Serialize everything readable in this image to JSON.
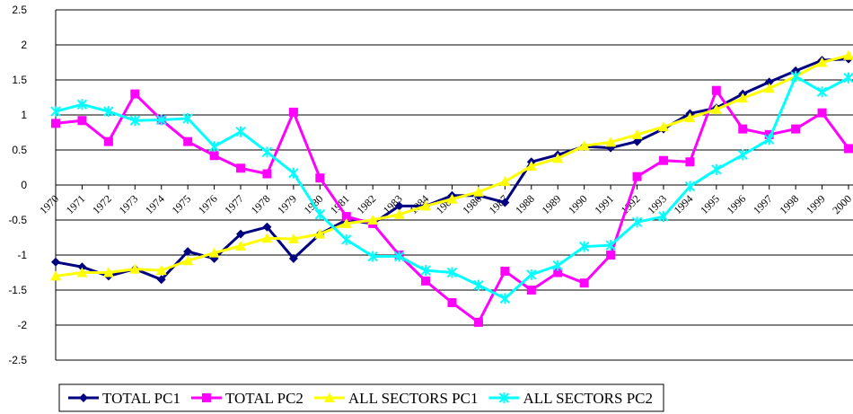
{
  "chart_data": {
    "type": "line",
    "categories": [
      "1970",
      "1971",
      "1972",
      "1973",
      "1974",
      "1975",
      "1976",
      "1977",
      "1978",
      "1979",
      "1980",
      "1981",
      "1982",
      "1983",
      "1984",
      "1985",
      "1986",
      "1987",
      "1988",
      "1989",
      "1990",
      "1991",
      "1992",
      "1993",
      "1994",
      "1995",
      "1996",
      "1997",
      "1998",
      "1999",
      "2000"
    ],
    "series": [
      {
        "name": "TOTAL PC1",
        "color": "#000080",
        "marker": "diamond",
        "values": [
          -1.1,
          -1.17,
          -1.3,
          -1.2,
          -1.35,
          -0.95,
          -1.05,
          -0.7,
          -0.6,
          -1.05,
          -0.7,
          -0.5,
          -0.55,
          -0.3,
          -0.3,
          -0.15,
          -0.15,
          -0.25,
          0.33,
          0.43,
          0.55,
          0.53,
          0.62,
          0.8,
          1.02,
          1.1,
          1.3,
          1.47,
          1.63,
          1.78,
          1.8
        ]
      },
      {
        "name": "TOTAL PC2",
        "color": "#ff00ff",
        "marker": "square",
        "values": [
          0.88,
          0.92,
          0.62,
          1.3,
          0.93,
          0.62,
          0.42,
          0.24,
          0.16,
          1.04,
          0.1,
          -0.45,
          -0.55,
          -1.0,
          -1.37,
          -1.68,
          -1.96,
          -1.23,
          -1.5,
          -1.25,
          -1.4,
          -1.0,
          0.12,
          0.35,
          0.33,
          1.35,
          0.8,
          0.72,
          0.8,
          1.03,
          0.52
        ]
      },
      {
        "name": "ALL SECTORS PC1",
        "color": "#ffff00",
        "marker": "triangle",
        "values": [
          -1.3,
          -1.25,
          -1.25,
          -1.2,
          -1.22,
          -1.08,
          -0.97,
          -0.87,
          -0.76,
          -0.77,
          -0.7,
          -0.55,
          -0.5,
          -0.42,
          -0.3,
          -0.2,
          -0.1,
          0.05,
          0.27,
          0.38,
          0.56,
          0.61,
          0.72,
          0.83,
          0.96,
          1.08,
          1.24,
          1.38,
          1.55,
          1.75,
          1.85
        ]
      },
      {
        "name": "ALL SECTORS PC2",
        "color": "#00ffff",
        "marker": "x",
        "values": [
          1.05,
          1.15,
          1.05,
          0.92,
          0.93,
          0.95,
          0.55,
          0.76,
          0.47,
          0.17,
          -0.42,
          -0.78,
          -1.02,
          -1.02,
          -1.22,
          -1.25,
          -1.43,
          -1.62,
          -1.28,
          -1.15,
          -0.88,
          -0.86,
          -0.53,
          -0.45,
          -0.02,
          0.22,
          0.43,
          0.65,
          1.55,
          1.33,
          1.53
        ]
      }
    ],
    "ylim": [
      -2.5,
      2.5
    ],
    "yticks": [
      -2.5,
      -2,
      -1.5,
      -1,
      -0.5,
      0,
      0.5,
      1,
      1.5,
      2,
      2.5
    ],
    "grid": true,
    "legend": "bottom"
  }
}
